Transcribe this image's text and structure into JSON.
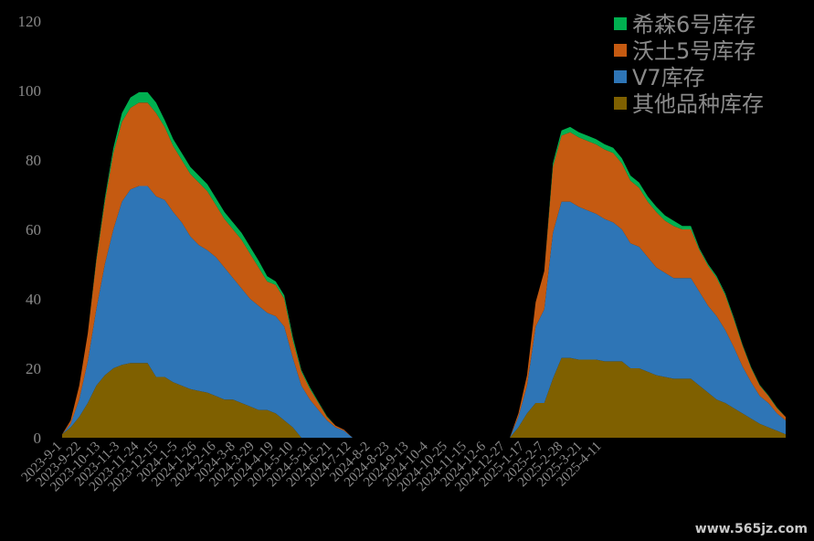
{
  "chart_data": {
    "type": "area",
    "stacked": true,
    "ylim": [
      0,
      120
    ],
    "yticks": [
      0,
      20,
      40,
      60,
      80,
      100,
      120
    ],
    "xlabels": [
      "2023-9-1",
      "2023-9-22",
      "2023-10-13",
      "2023-11-3",
      "2023-11-24",
      "2023-12-15",
      "2024-1-5",
      "2024-1-26",
      "2024-2-16",
      "2024-3-8",
      "2024-3-29",
      "2024-4-19",
      "2024-5-10",
      "2024-5-31",
      "2024-6-21",
      "2024-7-12",
      "2024-8-2",
      "2024-8-23",
      "2024-9-13",
      "2024-10-4",
      "2024-10-25",
      "2024-11-15",
      "2024-12-6",
      "2024-12-27",
      "2025-1-17",
      "2025-2-7",
      "2025-2-28",
      "2025-3-21",
      "2025-4-11"
    ],
    "legend_position": "top-right",
    "series": [
      {
        "name": "其他品种库存",
        "color": "#7f6000",
        "segments": [
          [
            1,
            3,
            6,
            10,
            15,
            18,
            20,
            21,
            21.5,
            21.5,
            21.5,
            17.5,
            17.5,
            16,
            15,
            14,
            13.5,
            13,
            12,
            11,
            11,
            10,
            9,
            8,
            8,
            7,
            5,
            3,
            0,
            0,
            0,
            0,
            0,
            0,
            0
          ],
          [
            0,
            3,
            7,
            10,
            10,
            17,
            23,
            23,
            22.5,
            22.5,
            22.5,
            22,
            22,
            22,
            20,
            20,
            19,
            18,
            17.5,
            17,
            17,
            17,
            15,
            13,
            11,
            10,
            8.5,
            7,
            5.5,
            4,
            3,
            2,
            1
          ]
        ]
      },
      {
        "name": "V7库存",
        "color": "#2e75b6",
        "segments": [
          [
            0,
            1,
            5,
            12,
            22,
            32,
            40,
            47,
            50,
            51,
            51,
            52,
            51,
            49,
            47,
            44,
            42,
            41,
            40,
            38,
            35,
            33,
            31,
            30,
            28,
            28,
            27,
            20,
            15,
            11,
            8,
            5,
            3,
            2,
            0
          ],
          [
            0,
            3,
            8,
            22,
            27,
            42,
            45,
            45,
            44,
            43,
            42,
            41,
            40,
            38,
            36,
            35,
            33,
            31,
            30,
            29,
            29,
            29,
            27,
            25,
            24,
            21,
            17.5,
            13.5,
            10.5,
            8,
            7,
            5,
            4
          ]
        ]
      },
      {
        "name": "沃土5号库存",
        "color": "#c55a11",
        "segments": [
          [
            0,
            1,
            4,
            8,
            14,
            18,
            22,
            23,
            23.5,
            24,
            24,
            24,
            21,
            19,
            18,
            18,
            18,
            17,
            15,
            14,
            14,
            14,
            13,
            11,
            9,
            9,
            8,
            5,
            4,
            3,
            2,
            1,
            0.5,
            0.3,
            0
          ],
          [
            0,
            1,
            3,
            7,
            11,
            19,
            19,
            20,
            20,
            20,
            20,
            20,
            20,
            19,
            18,
            17,
            16,
            16,
            15,
            15,
            14,
            14,
            12,
            11.5,
            11,
            10,
            8,
            6,
            4,
            3,
            2,
            1.5,
            1
          ]
        ]
      },
      {
        "name": "希森6号库存",
        "color": "#00b050",
        "segments": [
          [
            0,
            0,
            0,
            0,
            0.5,
            1,
            1.5,
            2.5,
            3,
            3,
            3,
            3,
            2,
            2,
            2,
            2,
            2,
            2,
            2,
            2,
            2,
            2,
            2,
            2,
            1.5,
            1,
            1,
            1,
            0.5,
            0.5,
            0.3,
            0.2,
            0,
            0,
            0
          ],
          [
            0,
            0,
            0,
            0,
            0,
            1,
            1.5,
            1.5,
            1.5,
            1.5,
            1.5,
            1.5,
            1.5,
            1.5,
            1.5,
            1.5,
            1.5,
            1.5,
            1.5,
            1.5,
            1,
            1,
            0.5,
            0.5,
            0.5,
            0.5,
            0.5,
            0.3,
            0.3,
            0.2,
            0.2,
            0.2,
            0
          ]
        ]
      }
    ],
    "legend_order": [
      "希森6号库存",
      "沃土5号库存",
      "V7库存",
      "其他品种库存"
    ]
  },
  "watermark": "www.565jz.com"
}
